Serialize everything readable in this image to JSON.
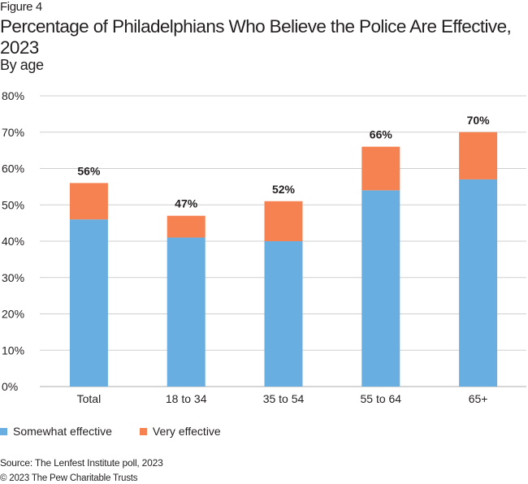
{
  "figure_label": "Figure 4",
  "title": "Percentage of Philadelphians Who Believe the Police Are Effective, 2023",
  "subtitle": "By age",
  "source": "Source: The Lenfest Institute poll, 2023",
  "copyright": "© 2023 The Pew Charitable Trusts",
  "chart_data": {
    "type": "bar",
    "stacked": true,
    "title": "Percentage of Philadelphians Who Believe the Police Are Effective, 2023",
    "subtitle": "By age",
    "xlabel": "",
    "ylabel": "",
    "categories": [
      "Total",
      "18 to 34",
      "35 to 54",
      "55 to 64",
      "65+"
    ],
    "series": [
      {
        "name": "Somewhat effective",
        "color": "#68aee0",
        "values": [
          46,
          41,
          40,
          54,
          57
        ]
      },
      {
        "name": "Very effective",
        "color": "#f58250",
        "values": [
          10,
          6,
          11,
          12,
          13
        ]
      }
    ],
    "total_labels": [
      "56%",
      "47%",
      "52%",
      "66%",
      "70%"
    ],
    "ylim": [
      0,
      80
    ],
    "yticks": [
      0,
      10,
      20,
      30,
      40,
      50,
      60,
      70,
      80
    ],
    "ytick_labels": [
      "0%",
      "10%",
      "20%",
      "30%",
      "40%",
      "50%",
      "60%",
      "70%",
      "80%"
    ],
    "grid": true,
    "legend_position": "bottom-left"
  }
}
